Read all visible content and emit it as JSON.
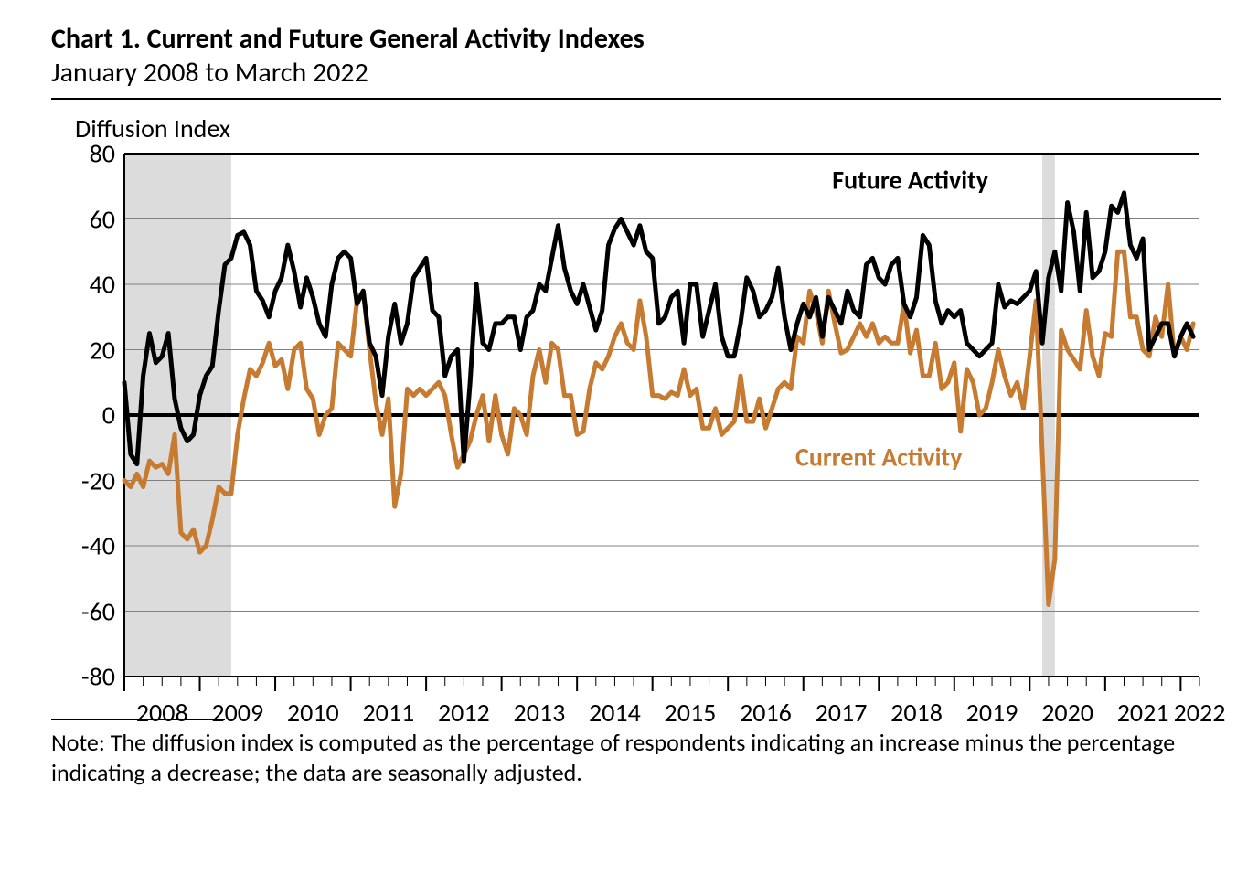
{
  "chart": {
    "title": "Chart 1. Current and Future General Activity Indexes",
    "subtitle": "January 2008 to March 2022",
    "axis_title": "Diffusion Index",
    "note": "Note: The diffusion index is computed as the percentage of respondents indicating an increase minus the percentage indicating a decrease; the data are seasonally adjusted.",
    "type": "line",
    "x_domain_months": {
      "start": 0,
      "end": 171
    },
    "ylim": [
      -80,
      80
    ],
    "ytick_step": 20,
    "yticks": [
      -80,
      -60,
      -40,
      -20,
      0,
      20,
      40,
      60,
      80
    ],
    "x_year_labels": [
      "2008",
      "2009",
      "2010",
      "2011",
      "2012",
      "2013",
      "2014",
      "2015",
      "2016",
      "2017",
      "2018",
      "2019",
      "2020",
      "2021",
      "2022"
    ],
    "x_year_start_indices": [
      0,
      12,
      24,
      36,
      48,
      60,
      72,
      84,
      96,
      108,
      120,
      132,
      144,
      156,
      168
    ],
    "minor_tick_every_months": 3,
    "background_color": "#ffffff",
    "grid_color": "#808080",
    "grid_width": 1,
    "axis_color": "#000000",
    "axis_width": 2,
    "zero_line_color": "#000000",
    "zero_line_width": 4,
    "recession_fill": "#dcdcdc",
    "recession_bands_months": [
      {
        "start": 0,
        "end": 17
      },
      {
        "start": 146,
        "end": 148
      }
    ],
    "title_fontsize": 30,
    "subtitle_fontsize": 30,
    "axis_title_fontsize": 28,
    "tick_fontsize": 28,
    "note_fontsize": 26,
    "label_fontsize": 28,
    "series": {
      "future": {
        "label": "Future Activity",
        "color": "#000000",
        "width": 5,
        "label_pos_month": 125,
        "label_pos_value": 72,
        "values": [
          10,
          -12,
          -15,
          12,
          25,
          16,
          18,
          25,
          5,
          -4,
          -8,
          -6,
          6,
          12,
          15,
          32,
          46,
          48,
          55,
          56,
          52,
          38,
          35,
          30,
          38,
          42,
          52,
          44,
          33,
          42,
          36,
          28,
          24,
          40,
          48,
          50,
          48,
          34,
          38,
          22,
          18,
          6,
          24,
          34,
          22,
          28,
          42,
          45,
          48,
          32,
          30,
          12,
          18,
          20,
          -14,
          10,
          40,
          22,
          20,
          28,
          28,
          30,
          30,
          20,
          30,
          32,
          40,
          38,
          48,
          58,
          45,
          38,
          34,
          40,
          33,
          26,
          32,
          52,
          57,
          60,
          56,
          52,
          58,
          50,
          48,
          28,
          30,
          36,
          38,
          22,
          40,
          40,
          24,
          32,
          40,
          24,
          18,
          18,
          28,
          42,
          38,
          30,
          32,
          36,
          45,
          30,
          20,
          28,
          34,
          30,
          36,
          24,
          36,
          32,
          28,
          38,
          32,
          30,
          46,
          48,
          42,
          40,
          46,
          48,
          34,
          30,
          36,
          55,
          52,
          35,
          28,
          32,
          30,
          32,
          22,
          20,
          18,
          20,
          22,
          40,
          33,
          35,
          34,
          36,
          38,
          44,
          22,
          42,
          50,
          38,
          65,
          56,
          38,
          62,
          42,
          44,
          50,
          64,
          62,
          68,
          52,
          48,
          54,
          20,
          24,
          28,
          28,
          18,
          24,
          28,
          24
        ]
      },
      "current": {
        "label": "Current Activity",
        "color": "#c77b30",
        "width": 5,
        "label_pos_month": 120,
        "label_pos_value": -13,
        "values": [
          -20,
          -22,
          -18,
          -22,
          -14,
          -16,
          -15,
          -18,
          -6,
          -36,
          -38,
          -35,
          -42,
          -40,
          -32,
          -22,
          -24,
          -24,
          -6,
          5,
          14,
          12,
          16,
          22,
          15,
          17,
          8,
          20,
          22,
          8,
          5,
          -6,
          0,
          2,
          22,
          20,
          18,
          35,
          38,
          20,
          4,
          -6,
          5,
          -28,
          -18,
          8,
          6,
          8,
          6,
          8,
          10,
          6,
          -6,
          -16,
          -12,
          -8,
          0,
          6,
          -8,
          6,
          -6,
          -12,
          2,
          0,
          -6,
          12,
          20,
          10,
          22,
          20,
          6,
          6,
          -6,
          -5,
          8,
          16,
          14,
          18,
          24,
          28,
          22,
          20,
          35,
          24,
          6,
          6,
          5,
          7,
          6,
          14,
          6,
          8,
          -4,
          -4,
          2,
          -6,
          -4,
          -2,
          12,
          -2,
          -2,
          5,
          -4,
          2,
          8,
          10,
          8,
          24,
          22,
          38,
          32,
          22,
          38,
          28,
          19,
          20,
          24,
          28,
          24,
          28,
          22,
          24,
          22,
          22,
          34,
          19,
          26,
          12,
          12,
          22,
          8,
          10,
          16,
          -5,
          14,
          10,
          0,
          2,
          10,
          20,
          12,
          6,
          10,
          2,
          18,
          35,
          -12,
          -58,
          -44,
          26,
          20,
          17,
          14,
          32,
          18,
          12,
          25,
          24,
          50,
          50,
          30,
          30,
          20,
          18,
          30,
          24,
          40,
          18,
          24,
          20,
          28
        ]
      }
    }
  }
}
